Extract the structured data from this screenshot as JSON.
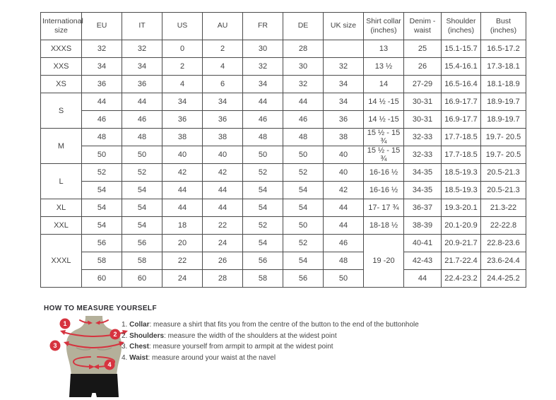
{
  "colors": {
    "accent-red": "#d6333f",
    "mannequin-body": "#b4b09a",
    "mannequin-shorts": "#161616",
    "table-border": "#4b4b4b"
  },
  "size_table": {
    "headers": [
      "International size",
      "EU",
      "IT",
      "US",
      "AU",
      "FR",
      "DE",
      "UK size",
      "Shirt collar (inches)",
      "Denim - waist",
      "Shoulder (inches)",
      "Bust (inches)"
    ],
    "rows": [
      [
        "XXXS",
        "32",
        "32",
        "0",
        "2",
        "30",
        "28",
        "",
        "13",
        "25",
        "15.1-15.7",
        "16.5-17.2"
      ],
      [
        "XXS",
        "34",
        "34",
        "2",
        "4",
        "32",
        "30",
        "32",
        "13 ½",
        "26",
        "15.4-16.1",
        "17.3-18.1"
      ],
      [
        "XS",
        "36",
        "36",
        "4",
        "6",
        "34",
        "32",
        "34",
        "14",
        "27-29",
        "16.5-16.4",
        "18.1-18.9"
      ],
      [
        {
          "t": "S",
          "rs": 2
        },
        "44",
        "44",
        "34",
        "34",
        "44",
        "44",
        "34",
        "14 ½ -15",
        "30-31",
        "16.9-17.7",
        "18.9-19.7"
      ],
      [
        "46",
        "46",
        "36",
        "36",
        "46",
        "46",
        "36",
        "14 ½ -15",
        "30-31",
        "16.9-17.7",
        "18.9-19.7"
      ],
      [
        {
          "t": "M",
          "rs": 2
        },
        "48",
        "48",
        "38",
        "38",
        "48",
        "48",
        "38",
        "15 ½ - 15 ¾",
        "32-33",
        "17.7-18.5",
        "19.7- 20.5"
      ],
      [
        "50",
        "50",
        "40",
        "40",
        "50",
        "50",
        "40",
        "15 ½ - 15 ¾",
        "32-33",
        "17.7-18.5",
        "19.7- 20.5"
      ],
      [
        {
          "t": "L",
          "rs": 2
        },
        "52",
        "52",
        "42",
        "42",
        "52",
        "52",
        "40",
        "16-16 ½",
        "34-35",
        "18.5-19.3",
        "20.5-21.3"
      ],
      [
        "54",
        "54",
        "44",
        "44",
        "54",
        "54",
        "42",
        "16-16 ½",
        "34-35",
        "18.5-19.3",
        "20.5-21.3"
      ],
      [
        "XL",
        "54",
        "54",
        "44",
        "44",
        "54",
        "54",
        "44",
        "17- 17 ¾",
        "36-37",
        "19.3-20.1",
        "21.3-22"
      ],
      [
        "XXL",
        "54",
        "54",
        "18",
        "22",
        "52",
        "50",
        "44",
        "18-18 ½",
        "38-39",
        "20.1-20.9",
        "22-22.8"
      ],
      [
        {
          "t": "XXXL",
          "rs": 3
        },
        "56",
        "56",
        "20",
        "24",
        "54",
        "52",
        "46",
        {
          "t": "19 -20",
          "rs": 3
        },
        "40-41",
        "20.9-21.7",
        "22.8-23.6"
      ],
      [
        "58",
        "58",
        "22",
        "26",
        "56",
        "54",
        "48",
        "42-43",
        "21.7-22.4",
        "23.6-24.4"
      ],
      [
        "60",
        "60",
        "24",
        "28",
        "58",
        "56",
        "50",
        "44",
        "22.4-23.2",
        "24.4-25.2"
      ]
    ]
  },
  "instructions": {
    "title": "HOW TO MEASURE YOURSELF",
    "items": [
      {
        "num": "1. ",
        "term": "Collar",
        "rest": ": measure a shirt that fits you from the centre of the button to the end of the buttonhole"
      },
      {
        "num": "2. ",
        "term": "Shoulders",
        "rest": ": measure the width of the shoulders at the widest point"
      },
      {
        "num": "3. ",
        "term": "Chest",
        "rest": ": measure yourself from armpit to armpit at the widest point"
      },
      {
        "num": "4. ",
        "term": "Waist",
        "rest": ": measure around your waist at the navel"
      }
    ]
  },
  "figure": {
    "markers": [
      "1",
      "2",
      "3",
      "4"
    ]
  }
}
